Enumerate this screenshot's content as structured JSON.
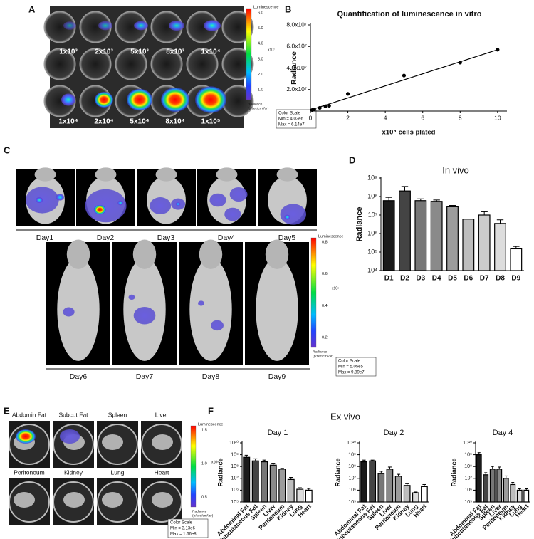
{
  "figure": {
    "panel_labels": [
      "A",
      "B",
      "C",
      "D",
      "E",
      "F"
    ],
    "plate": {
      "top_row": [
        "1x10³",
        "2x10³",
        "5x10³",
        "8x10³",
        "1x10⁴"
      ],
      "bottom_row": [
        "1x10⁴",
        "2x10⁴",
        "5x10⁴",
        "8x10⁴",
        "1x10⁵"
      ],
      "colorbar": {
        "title": "Luminescence",
        "ticks": [
          "6.0",
          "5.0",
          "4.0",
          "3.0",
          "2.0",
          "1.0"
        ],
        "exponent": "x10⁷",
        "unit": [
          "Radiance",
          "(p/sec/cm²/sr)"
        ],
        "scale": [
          "Color Scale",
          "Min = 4.02e6",
          "Max = 6.14e7"
        ]
      }
    },
    "in_vivo_images": {
      "days_top": [
        "Day1",
        "Day2",
        "Day3",
        "Day4",
        "Day5"
      ],
      "days_bottom": [
        "Day6",
        "Day7",
        "Day8",
        "Day9"
      ],
      "colorbar": {
        "title": "Luminescence",
        "ticks": [
          "0.8",
          "0.6",
          "0.4",
          "0.2"
        ],
        "exponent": "x10⁸",
        "unit": [
          "Radiance",
          "(p/sec/cm²/sr)"
        ],
        "scale": [
          "Color Scale",
          "Min = 5.05e5",
          "Max = 9.89e7"
        ]
      }
    },
    "ex_vivo_images": {
      "organs_top": [
        "Abdomin Fat",
        "Subcut Fat",
        "Spleen",
        "Liver"
      ],
      "organs_bottom": [
        "Peritoneum",
        "Kidney",
        "Lung",
        "Heart"
      ],
      "colorbar": {
        "title": "Luminescence",
        "ticks": [
          "1.5",
          "1.0",
          "0.5"
        ],
        "exponent": "x10⁸",
        "unit": [
          "Radiance",
          "(p/sec/cm²/sr)"
        ],
        "scale": [
          "Color Scale",
          "Min = 3.13e6",
          "Max = 1.66e8"
        ]
      }
    },
    "ex_vivo_title": "Ex vivo"
  },
  "chart_data": [
    {
      "type": "scatter",
      "title": "Quantification of luminescence in vitro",
      "x_label": "x10⁴ cells plated",
      "y_label": "Radiance",
      "x": [
        0.1,
        0.2,
        0.5,
        0.8,
        1,
        2,
        5,
        8,
        10
      ],
      "values": [
        1000000,
        1500000,
        3000000,
        4500000,
        5000000,
        16000000,
        33000000,
        45000000,
        57000000
      ],
      "color": "#000000",
      "trendline": {
        "x": [
          0,
          10
        ],
        "values": [
          1000000,
          57000000
        ]
      },
      "xlim": [
        0,
        10.5
      ],
      "ylim": [
        0,
        80000000
      ],
      "xticks": [
        0,
        2,
        4,
        6,
        8,
        10
      ],
      "yticks": [
        {
          "value": 20000000,
          "label": "2.0x10⁷"
        },
        {
          "value": 40000000,
          "label": "4.0x10⁷"
        },
        {
          "value": 60000000,
          "label": "6.0x10⁷"
        },
        {
          "value": 80000000,
          "label": "8.0x10⁷"
        }
      ]
    },
    {
      "type": "bar",
      "title": "In vivo",
      "y_label": "Radiance",
      "log": true,
      "categories": [
        "D1",
        "D2",
        "D3",
        "D4",
        "D5",
        "D6",
        "D7",
        "D8",
        "D9"
      ],
      "values": [
        60000000,
        200000000,
        60000000,
        55000000,
        28000000,
        6000000,
        10000000,
        3500000,
        150000
      ],
      "errors": [
        30000000,
        150000000,
        15000000,
        10000000,
        5000000,
        0,
        5000000,
        2000000,
        50000
      ],
      "colors": [
        "#1a1a1a",
        "#444444",
        "#777777",
        "#8a8a8a",
        "#9c9c9c",
        "#bdbdbd",
        "#cccccc",
        "#dddddd",
        "#ffffff"
      ],
      "ylim": [
        10000,
        1000000000
      ],
      "yticks": [
        {
          "value": 10000,
          "label": "10⁴"
        },
        {
          "value": 100000,
          "label": "10⁵"
        },
        {
          "value": 1000000,
          "label": "10⁶"
        },
        {
          "value": 10000000,
          "label": "10⁷"
        },
        {
          "value": 100000000,
          "label": "10⁸"
        },
        {
          "value": 1000000000,
          "label": "10⁹"
        }
      ]
    },
    {
      "type": "bar",
      "title": "Day 1",
      "y_label": "Radiance",
      "log": true,
      "categories": [
        "Abdominal Fat",
        "Subcutaneous Fat",
        "Spleen",
        "Liver",
        "Peritoneum",
        "Kidney",
        "Lung",
        "Heart"
      ],
      "values": [
        600000000,
        300000000,
        250000000,
        130000000,
        60000000,
        8000000,
        1200000,
        1000000
      ],
      "errors": [
        300000000,
        150000000,
        100000000,
        60000000,
        10000000,
        4000000,
        400000,
        400000
      ],
      "colors": [
        "#1a1a1a",
        "#444444",
        "#777777",
        "#8a8a8a",
        "#9c9c9c",
        "#bdbdbd",
        "#dddddd",
        "#ffffff"
      ],
      "ylim": [
        100000,
        10000000000
      ],
      "yticks": [
        {
          "value": 100000,
          "label": "10⁵"
        },
        {
          "value": 1000000,
          "label": "10⁶"
        },
        {
          "value": 10000000,
          "label": "10⁷"
        },
        {
          "value": 100000000,
          "label": "10⁸"
        },
        {
          "value": 1000000000,
          "label": "10⁹"
        },
        {
          "value": 10000000000,
          "label": "10¹⁰"
        }
      ]
    },
    {
      "type": "bar",
      "title": "Day 2",
      "y_label": "Radiance",
      "log": true,
      "categories": [
        "Abdominal Fat",
        "Subcutaneous Fat",
        "Spleen",
        "Liver",
        "Peritoneum",
        "Kidney",
        "Lung",
        "Heart"
      ],
      "values": [
        250000000,
        300000000,
        25000000,
        60000000,
        15000000,
        2500000,
        600000,
        2000000
      ],
      "errors": [
        100000000,
        50000000,
        15000000,
        30000000,
        7000000,
        1000000,
        100000,
        1000000
      ],
      "colors": [
        "#1a1a1a",
        "#444444",
        "#777777",
        "#8a8a8a",
        "#9c9c9c",
        "#bdbdbd",
        "#dddddd",
        "#ffffff"
      ],
      "ylim": [
        100000,
        10000000000
      ],
      "yticks": [
        {
          "value": 100000,
          "label": "10⁵"
        },
        {
          "value": 1000000,
          "label": "10⁶"
        },
        {
          "value": 10000000,
          "label": "10⁷"
        },
        {
          "value": 100000000,
          "label": "10⁸"
        },
        {
          "value": 1000000000,
          "label": "10⁹"
        },
        {
          "value": 10000000000,
          "label": "10¹⁰"
        }
      ]
    },
    {
      "type": "bar",
      "title": "Day 4",
      "y_label": "Radiance",
      "log": true,
      "categories": [
        "Abdominal Fat",
        "Subcutaneous Fat",
        "Spleen",
        "Liver",
        "Peritoneum",
        "Kidney",
        "Lung",
        "Heart"
      ],
      "values": [
        1000000000,
        20000000,
        60000000,
        60000000,
        10000000,
        3000000,
        1000000,
        1000000
      ],
      "errors": [
        500000000,
        10000000,
        40000000,
        30000000,
        6000000,
        1500000,
        300000,
        300000
      ],
      "colors": [
        "#1a1a1a",
        "#444444",
        "#777777",
        "#8a8a8a",
        "#9c9c9c",
        "#bdbdbd",
        "#dddddd",
        "#ffffff"
      ],
      "ylim": [
        100000,
        10000000000
      ],
      "yticks": [
        {
          "value": 100000,
          "label": "10⁵"
        },
        {
          "value": 1000000,
          "label": "10⁶"
        },
        {
          "value": 10000000,
          "label": "10⁷"
        },
        {
          "value": 100000000,
          "label": "10⁸"
        },
        {
          "value": 1000000000,
          "label": "10⁹"
        },
        {
          "value": 10000000000,
          "label": "10¹⁰"
        }
      ]
    }
  ]
}
